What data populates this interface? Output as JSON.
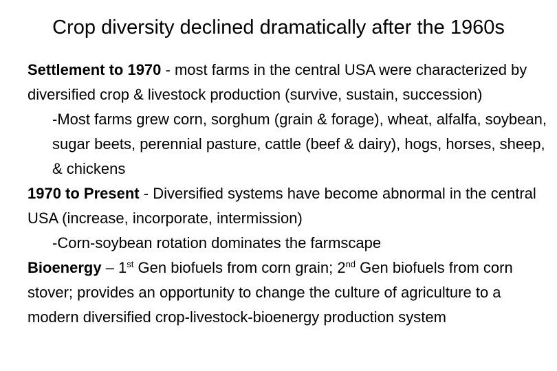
{
  "title": "Crop diversity declined dramatically after the 1960s",
  "paragraphs": [
    {
      "heading": "Settlement to 1970",
      "text": " - most farms in the central USA were characterized by diversified crop & livestock production (survive, sustain, succession)"
    },
    {
      "text": "-Most farms grew corn, sorghum (grain & forage), wheat, alfalfa, soybean, sugar beets, perennial pasture, cattle (beef & dairy), hogs, horses, sheep, & chickens"
    },
    {
      "heading": "1970 to Present",
      "text": " - Diversified systems have become abnormal in the central USA (increase, incorporate, intermission)"
    },
    {
      "text": "-Corn-soybean rotation dominates the farmscape"
    },
    {
      "heading": "Bioenergy",
      "part1": " – 1",
      "sup1": "st",
      "part2": " Gen biofuels from corn grain; 2",
      "sup2": "nd",
      "part3": " Gen biofuels from corn stover; provides an opportunity to change the culture of agriculture to a modern diversified crop-livestock-bioenergy production system"
    }
  ]
}
